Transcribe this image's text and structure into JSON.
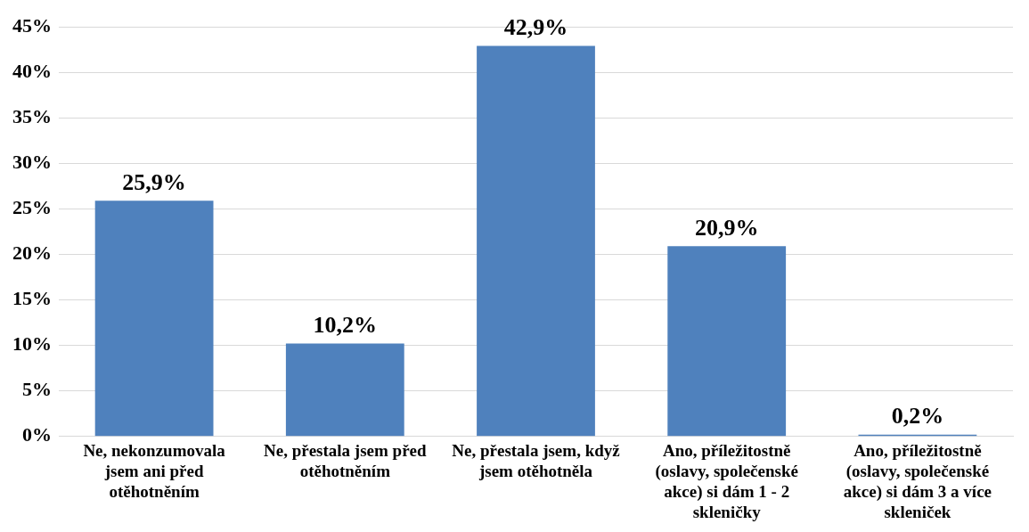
{
  "chart_data": {
    "type": "bar",
    "categories": [
      "Ne, nekonzumovala jsem ani před otěhotněním",
      "Ne, přestala jsem před otěhotněním",
      "Ne, přestala jsem, když jsem otěhotněla",
      "Ano, příležitostně (oslavy, společenské akce) si dám 1 - 2 skleničky",
      "Ano, příležitostně (oslavy, společenské akce) si dám 3 a více skleniček"
    ],
    "values": [
      25.9,
      10.2,
      42.9,
      20.9,
      0.2
    ],
    "value_labels": [
      "25,9%",
      "10,2%",
      "42,9%",
      "20,9%",
      "0,2%"
    ],
    "color": "#4f81bd",
    "ylim": [
      0,
      45
    ],
    "yticks": [
      {
        "value": 0,
        "label": "0%"
      },
      {
        "value": 5,
        "label": "5%"
      },
      {
        "value": 10,
        "label": "10%"
      },
      {
        "value": 15,
        "label": "15%"
      },
      {
        "value": 20,
        "label": "20%"
      },
      {
        "value": 25,
        "label": "25%"
      },
      {
        "value": 30,
        "label": "30%"
      },
      {
        "value": 35,
        "label": "35%"
      },
      {
        "value": 40,
        "label": "40%"
      },
      {
        "value": 45,
        "label": "45%"
      }
    ],
    "grid": "y",
    "legend": false
  }
}
